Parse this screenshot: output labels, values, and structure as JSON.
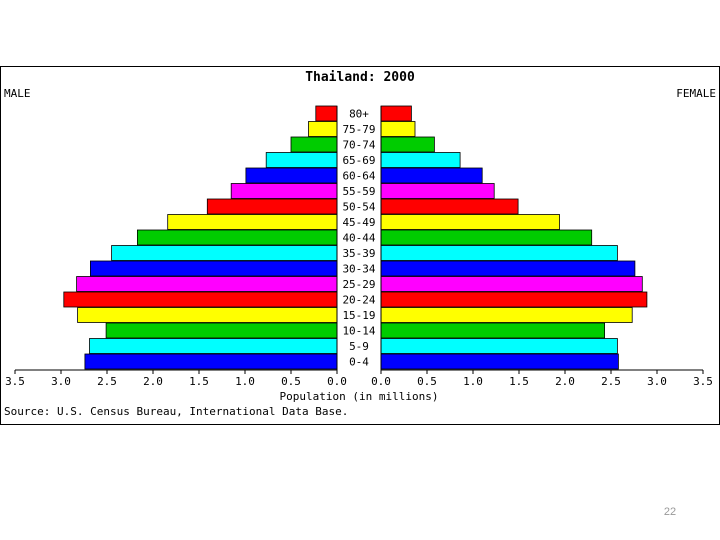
{
  "slide": {
    "page_number": "22"
  },
  "chart_data": {
    "type": "bar",
    "title": "Thailand: 2000",
    "left_label": "MALE",
    "right_label": "FEMALE",
    "xlabel": "Population (in millions)",
    "source": "Source: U.S. Census Bureau, International Data Base.",
    "xlim": [
      0,
      3.5
    ],
    "ticks": [
      "3.5",
      "3.0",
      "2.5",
      "2.0",
      "1.5",
      "1.0",
      "0.5",
      "0.0",
      "0.0",
      "0.5",
      "1.0",
      "1.5",
      "2.0",
      "2.5",
      "3.0",
      "3.5"
    ],
    "categories": [
      "80+",
      "75-79",
      "70-74",
      "65-69",
      "60-64",
      "55-59",
      "50-54",
      "45-49",
      "40-44",
      "35-39",
      "30-34",
      "25-29",
      "20-24",
      "15-19",
      "10-14",
      "5-9",
      "0-4"
    ],
    "colors": [
      "#ff0000",
      "#ffff00",
      "#00cc00",
      "#00ffff",
      "#0000ff",
      "#ff00ff",
      "#ff0000",
      "#ffff00",
      "#00cc00",
      "#00ffff",
      "#0000ff",
      "#ff00ff",
      "#ff0000",
      "#ffff00",
      "#00cc00",
      "#00ffff",
      "#0000ff"
    ],
    "series": [
      {
        "name": "MALE",
        "values": [
          0.23,
          0.31,
          0.5,
          0.77,
          0.99,
          1.15,
          1.41,
          1.84,
          2.17,
          2.45,
          2.68,
          2.83,
          2.97,
          2.82,
          2.51,
          2.69,
          2.74
        ]
      },
      {
        "name": "FEMALE",
        "values": [
          0.33,
          0.37,
          0.58,
          0.86,
          1.1,
          1.23,
          1.49,
          1.94,
          2.29,
          2.57,
          2.76,
          2.84,
          2.89,
          2.73,
          2.43,
          2.57,
          2.58
        ]
      }
    ]
  }
}
